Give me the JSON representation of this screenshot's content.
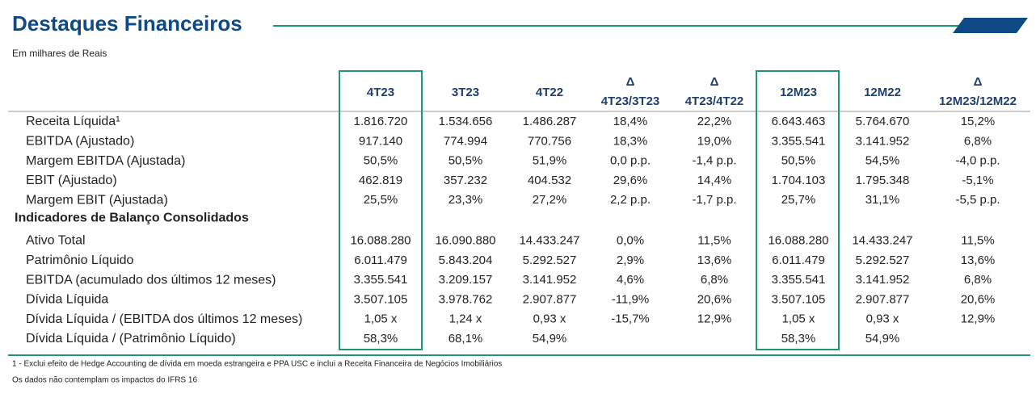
{
  "header": {
    "title": "Destaques Financeiros",
    "subtitle": "Em milhares de Reais"
  },
  "table": {
    "columns": [
      {
        "label": "4T23"
      },
      {
        "label": "3T23"
      },
      {
        "label": "4T22"
      },
      {
        "symbol": "Δ",
        "label": "4T23/3T23"
      },
      {
        "symbol": "Δ",
        "label": "4T23/4T22"
      },
      {
        "label": "12M23"
      },
      {
        "label": "12M22"
      },
      {
        "symbol": "Δ",
        "label": "12M23/12M22"
      }
    ],
    "groups": [
      {
        "rows": [
          {
            "label": "Receita Líquida¹",
            "values": [
              "1.816.720",
              "1.534.656",
              "1.486.287",
              "18,4%",
              "22,2%",
              "6.643.463",
              "5.764.670",
              "15,2%"
            ]
          },
          {
            "label": "EBITDA (Ajustado)",
            "values": [
              "917.140",
              "774.994",
              "770.756",
              "18,3%",
              "19,0%",
              "3.355.541",
              "3.141.952",
              "6,8%"
            ]
          },
          {
            "label": "Margem EBITDA (Ajustada)",
            "values": [
              "50,5%",
              "50,5%",
              "51,9%",
              "0,0 p.p.",
              "-1,4 p.p.",
              "50,5%",
              "54,5%",
              "-4,0 p.p."
            ]
          },
          {
            "label": "EBIT (Ajustado)",
            "values": [
              "462.819",
              "357.232",
              "404.532",
              "29,6%",
              "14,4%",
              "1.704.103",
              "1.795.348",
              "-5,1%"
            ]
          },
          {
            "label": "Margem EBIT (Ajustada)",
            "values": [
              "25,5%",
              "23,3%",
              "27,2%",
              "2,2 p.p.",
              "-1,7 p.p.",
              "25,7%",
              "31,1%",
              "-5,5 p.p."
            ]
          }
        ]
      },
      {
        "title": "Indicadores de Balanço Consolidados",
        "rows": [
          {
            "label": "Ativo Total",
            "values": [
              "16.088.280",
              "16.090.880",
              "14.433.247",
              "0,0%",
              "11,5%",
              "16.088.280",
              "14.433.247",
              "11,5%"
            ]
          },
          {
            "label": "Patrimônio Líquido",
            "values": [
              "6.011.479",
              "5.843.204",
              "5.292.527",
              "2,9%",
              "13,6%",
              "6.011.479",
              "5.292.527",
              "13,6%"
            ]
          },
          {
            "label": "EBITDA (acumulado dos últimos 12 meses)",
            "values": [
              "3.355.541",
              "3.209.157",
              "3.141.952",
              "4,6%",
              "6,8%",
              "3.355.541",
              "3.141.952",
              "6,8%"
            ]
          },
          {
            "label": "Dívida Líquida",
            "values": [
              "3.507.105",
              "3.978.762",
              "2.907.877",
              "-11,9%",
              "20,6%",
              "3.507.105",
              "2.907.877",
              "20,6%"
            ]
          },
          {
            "label": "Dívida Líquida / (EBITDA dos últimos 12 meses)",
            "values": [
              "1,05 x",
              "1,24 x",
              "0,93 x",
              "-15,7%",
              "12,9%",
              "1,05 x",
              "0,93 x",
              "12,9%"
            ]
          },
          {
            "label": "Dívida Líquida / (Patrimônio Líquido)",
            "values": [
              "58,3%",
              "68,1%",
              "54,9%",
              null,
              null,
              "58,3%",
              "54,9%",
              null
            ]
          }
        ]
      }
    ]
  },
  "footnotes": [
    "1 - Exclui efeito de Hedge Accounting de dívida em moeda estrangeira e PPA USC e inclui a Receita Financeira de Negócios Imobiliários",
    "Os dados não contemplam os impactos do IFRS 16"
  ]
}
